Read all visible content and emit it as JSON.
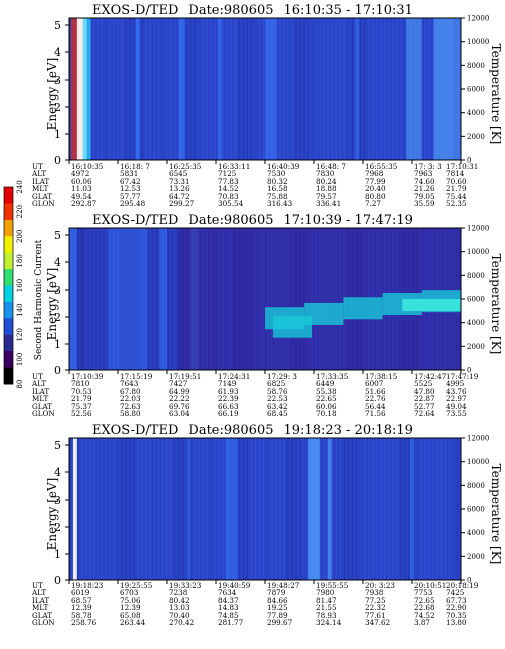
{
  "colorbar": {
    "label": "Second Harmonic Current",
    "ticks": [
      "80",
      "100",
      "120",
      "140",
      "160",
      "180",
      "200",
      "220",
      "240"
    ],
    "colors": [
      "#000000",
      "#3a0060",
      "#2a2a90",
      "#2050d8",
      "#1890f0",
      "#00d0e0",
      "#30e070",
      "#c0f030",
      "#f0f000",
      "#f0a000",
      "#f03000",
      "#e00000"
    ]
  },
  "panels": [
    {
      "title": "EXOS-D/TED",
      "date_label": "Date:980605",
      "time_range": "16:10:35 - 17:10:31",
      "y_left_label": "Energy [eV]",
      "y_right_label": "Temperature [K]",
      "y_left_ticks": [
        "0",
        "1",
        "2",
        "3",
        "4",
        "5"
      ],
      "y_right_ticks": [
        "0",
        "2000",
        "4000",
        "6000",
        "8000",
        "10000",
        "12000"
      ],
      "orbit_labels": [
        "UT",
        "ALT",
        "ILAT",
        "MLT",
        "GLAT",
        "GLON"
      ],
      "orbit_values": [
        [
          "16:10:35",
          "16:18: 7",
          "16:25:35",
          "16:33:11",
          "16:40:39",
          "16:48: 7",
          "16:55:35",
          "17: 3: 3",
          "17:10:31"
        ],
        [
          "4972",
          "5831",
          "6545",
          "7125",
          "7530",
          "7830",
          "7968",
          "7963",
          "7814"
        ],
        [
          "60.06",
          "67.42",
          "73.31",
          "77.83",
          "80.32",
          "80.24",
          "77.99",
          "74.60",
          "70.60"
        ],
        [
          "11.03",
          "12.53",
          "13.26",
          "14.52",
          "16.58",
          "18.88",
          "20.40",
          "21.26",
          "21.79"
        ],
        [
          "49.54",
          "57.77",
          "64.72",
          "70.83",
          "75.88",
          "79.57",
          "80.80",
          "79.05",
          "75.44"
        ],
        [
          "292.87",
          "295.48",
          "299.27",
          "305.54",
          "316.43",
          "336.41",
          "7.27",
          "35.59",
          "52.35"
        ]
      ]
    },
    {
      "title": "EXOS-D/TED",
      "date_label": "Date:980605",
      "time_range": "17:10:39 - 17:47:19",
      "y_left_label": "Energy [eV]",
      "y_right_label": "Temperature [K]",
      "y_left_ticks": [
        "0",
        "1",
        "2",
        "3",
        "4",
        "5"
      ],
      "y_right_ticks": [
        "0",
        "2000",
        "4000",
        "6000",
        "8000",
        "10000",
        "12000"
      ],
      "orbit_labels": [
        "UT",
        "ALT",
        "ILAT",
        "MLT",
        "GLAT",
        "GLON"
      ],
      "orbit_values": [
        [
          "17:10:39",
          "17:15:19",
          "17:19:51",
          "17:24:31",
          "17:29: 3",
          "17:33:35",
          "17:38:15",
          "17:42:47",
          "17:47:19"
        ],
        [
          "7810",
          "7643",
          "7427",
          "7149",
          "6825",
          "6449",
          "6007",
          "5525",
          "4995"
        ],
        [
          "70.53",
          "67.80",
          "64.99",
          "61.93",
          "58.76",
          "55.38",
          "51.66",
          "47.80",
          "43.76"
        ],
        [
          "21.79",
          "22.03",
          "22.22",
          "22.39",
          "22.53",
          "22.65",
          "22.76",
          "22.87",
          "22.97"
        ],
        [
          "75.37",
          "72.63",
          "69.76",
          "66.63",
          "63.42",
          "60.06",
          "56.44",
          "52.77",
          "49.04"
        ],
        [
          "52.56",
          "58.80",
          "63.04",
          "66.19",
          "68.45",
          "70.18",
          "71.56",
          "72.64",
          "73.55"
        ]
      ]
    },
    {
      "title": "EXOS-D/TED",
      "date_label": "Date:980605",
      "time_range": "19:18:23 - 20:18:19",
      "y_left_label": "Energy [eV]",
      "y_right_label": "Temperature [K]",
      "y_left_ticks": [
        "0",
        "1",
        "2",
        "3",
        "4",
        "5"
      ],
      "y_right_ticks": [
        "0",
        "2000",
        "4000",
        "6000",
        "8000",
        "10000",
        "12000"
      ],
      "orbit_labels": [
        "UT",
        "ALT",
        "ILAT",
        "MLT",
        "GLAT",
        "GLON"
      ],
      "orbit_values": [
        [
          "19:18:23",
          "19:25:55",
          "19:33:23",
          "19:40:59",
          "19:48:27",
          "19:55:55",
          "20: 3:23",
          "20:10:51",
          "20:18:19"
        ],
        [
          "6019",
          "6703",
          "7238",
          "7634",
          "7879",
          "7980",
          "7938",
          "7753",
          "7425"
        ],
        [
          "68.57",
          "75.06",
          "80.42",
          "84.37",
          "84.66",
          "81.47",
          "77.25",
          "72.65",
          "67.73"
        ],
        [
          "12.39",
          "12.39",
          "13.03",
          "14.83",
          "19.25",
          "21.55",
          "22.32",
          "22.68",
          "22.90"
        ],
        [
          "58.78",
          "65.08",
          "70.40",
          "74.85",
          "77.89",
          "78.93",
          "77.61",
          "74.52",
          "70.35"
        ],
        [
          "258.76",
          "263.44",
          "270.42",
          "281.77",
          "299.67",
          "324.14",
          "347.62",
          "3.87",
          "13.80"
        ]
      ]
    }
  ],
  "chart_data": [
    {
      "type": "heatmap",
      "title": "EXOS-D/TED  Date:980605  16:10:35 - 17:10:31",
      "ylabel": "Energy [eV]",
      "ylabel_right": "Temperature [K]",
      "ylim": [
        0,
        5.2
      ],
      "ylim_right": [
        0,
        12000
      ],
      "x_ticks": [
        "16:10:35",
        "16:18: 7",
        "16:25:35",
        "16:33:11",
        "16:40:39",
        "16:48: 7",
        "16:55:35",
        "17: 3: 3",
        "17:10:31"
      ],
      "colorbar_ticks": [
        80,
        100,
        120,
        140,
        160,
        180,
        200,
        220,
        240
      ],
      "colorbar_label": "Second Harmonic Current"
    },
    {
      "type": "heatmap",
      "title": "EXOS-D/TED  Date:980605  17:10:39 - 17:47:19",
      "ylabel": "Energy [eV]",
      "ylabel_right": "Temperature [K]",
      "ylim": [
        0,
        5.2
      ],
      "ylim_right": [
        0,
        12000
      ],
      "x_ticks": [
        "17:10:39",
        "17:15:19",
        "17:19:51",
        "17:24:31",
        "17:29: 3",
        "17:33:35",
        "17:38:15",
        "17:42:47",
        "17:47:19"
      ],
      "colorbar_ticks": [
        80,
        100,
        120,
        140,
        160,
        180,
        200,
        220,
        240
      ],
      "colorbar_label": "Second Harmonic Current"
    },
    {
      "type": "heatmap",
      "title": "EXOS-D/TED  Date:980605  19:18:23 - 20:18:19",
      "ylabel": "Energy [eV]",
      "ylabel_right": "Temperature [K]",
      "ylim": [
        0,
        5.2
      ],
      "ylim_right": [
        0,
        12000
      ],
      "x_ticks": [
        "19:18:23",
        "19:25:55",
        "19:33:23",
        "19:40:59",
        "19:48:27",
        "19:55:55",
        "20: 3:23",
        "20:10:51",
        "20:18:19"
      ],
      "colorbar_ticks": [
        80,
        100,
        120,
        140,
        160,
        180,
        200,
        220,
        240
      ],
      "colorbar_label": "Second Harmonic Current"
    }
  ]
}
